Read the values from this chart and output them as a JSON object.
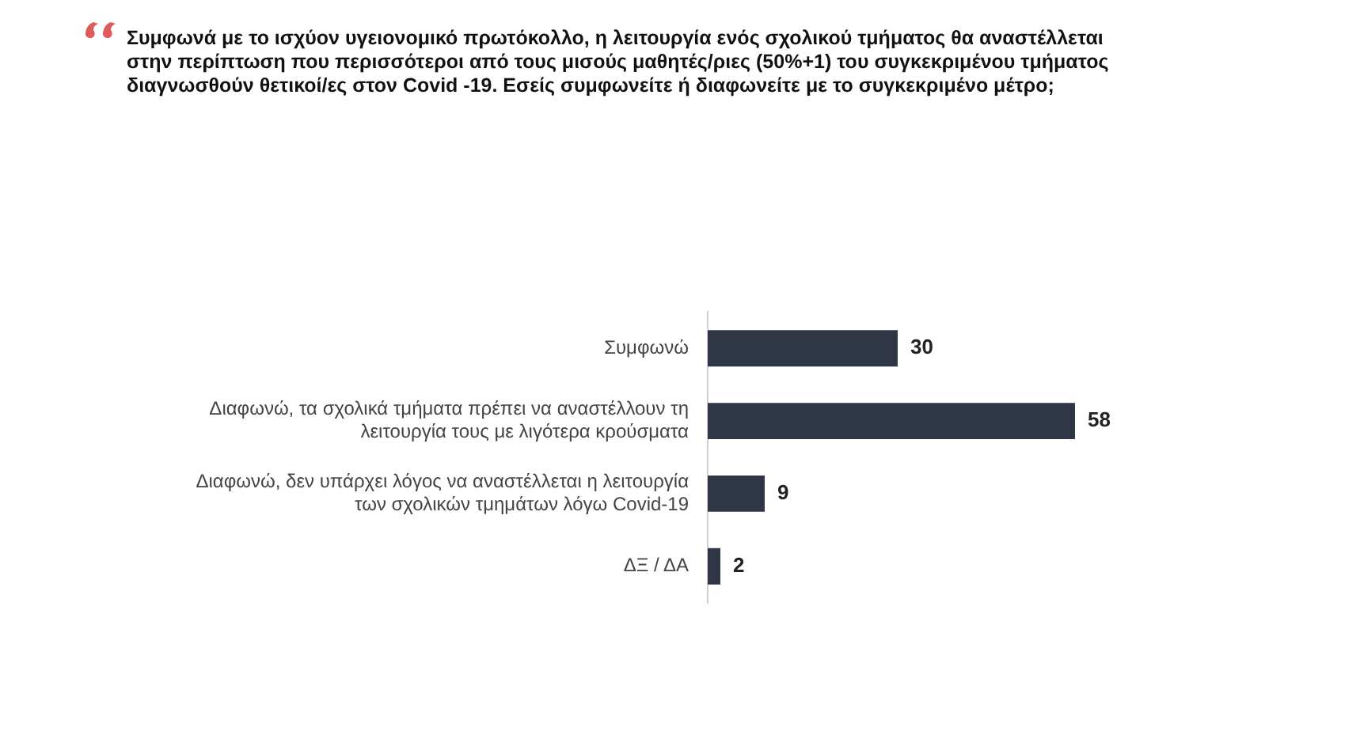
{
  "chart_data": {
    "type": "bar",
    "orientation": "horizontal",
    "title": "Συμφωνά με το ισχύον υγειονομικό πρωτόκολλο,  η λειτουργία ενός σχολικού τμήματος θα αναστέλλεται στην περίπτωση που περισσότεροι  από τους μισούς μαθητές/ριες (50%+1) του συγκεκριμένου τμήματος διαγνωσθούν θετικοί/ες στον Covid -19. Εσείς συμφωνείτε ή διαφωνείτε με το συγκεκριμένο μέτρο;",
    "categories": [
      "Συμφωνώ",
      "Διαφωνώ, τα σχολικά τμήματα πρέπει να αναστέλλουν τη λειτουργία τους με λιγότερα κρούσματα",
      "Διαφωνώ, δεν υπάρχει λόγος να αναστέλλεται η λειτουργία των σχολικών τμημάτων λόγω Covid-19",
      "ΔΞ / ΔΑ"
    ],
    "values": [
      30,
      58,
      9,
      2
    ],
    "color": "#2f3747",
    "data_labels": true,
    "tick_labels": "y"
  }
}
